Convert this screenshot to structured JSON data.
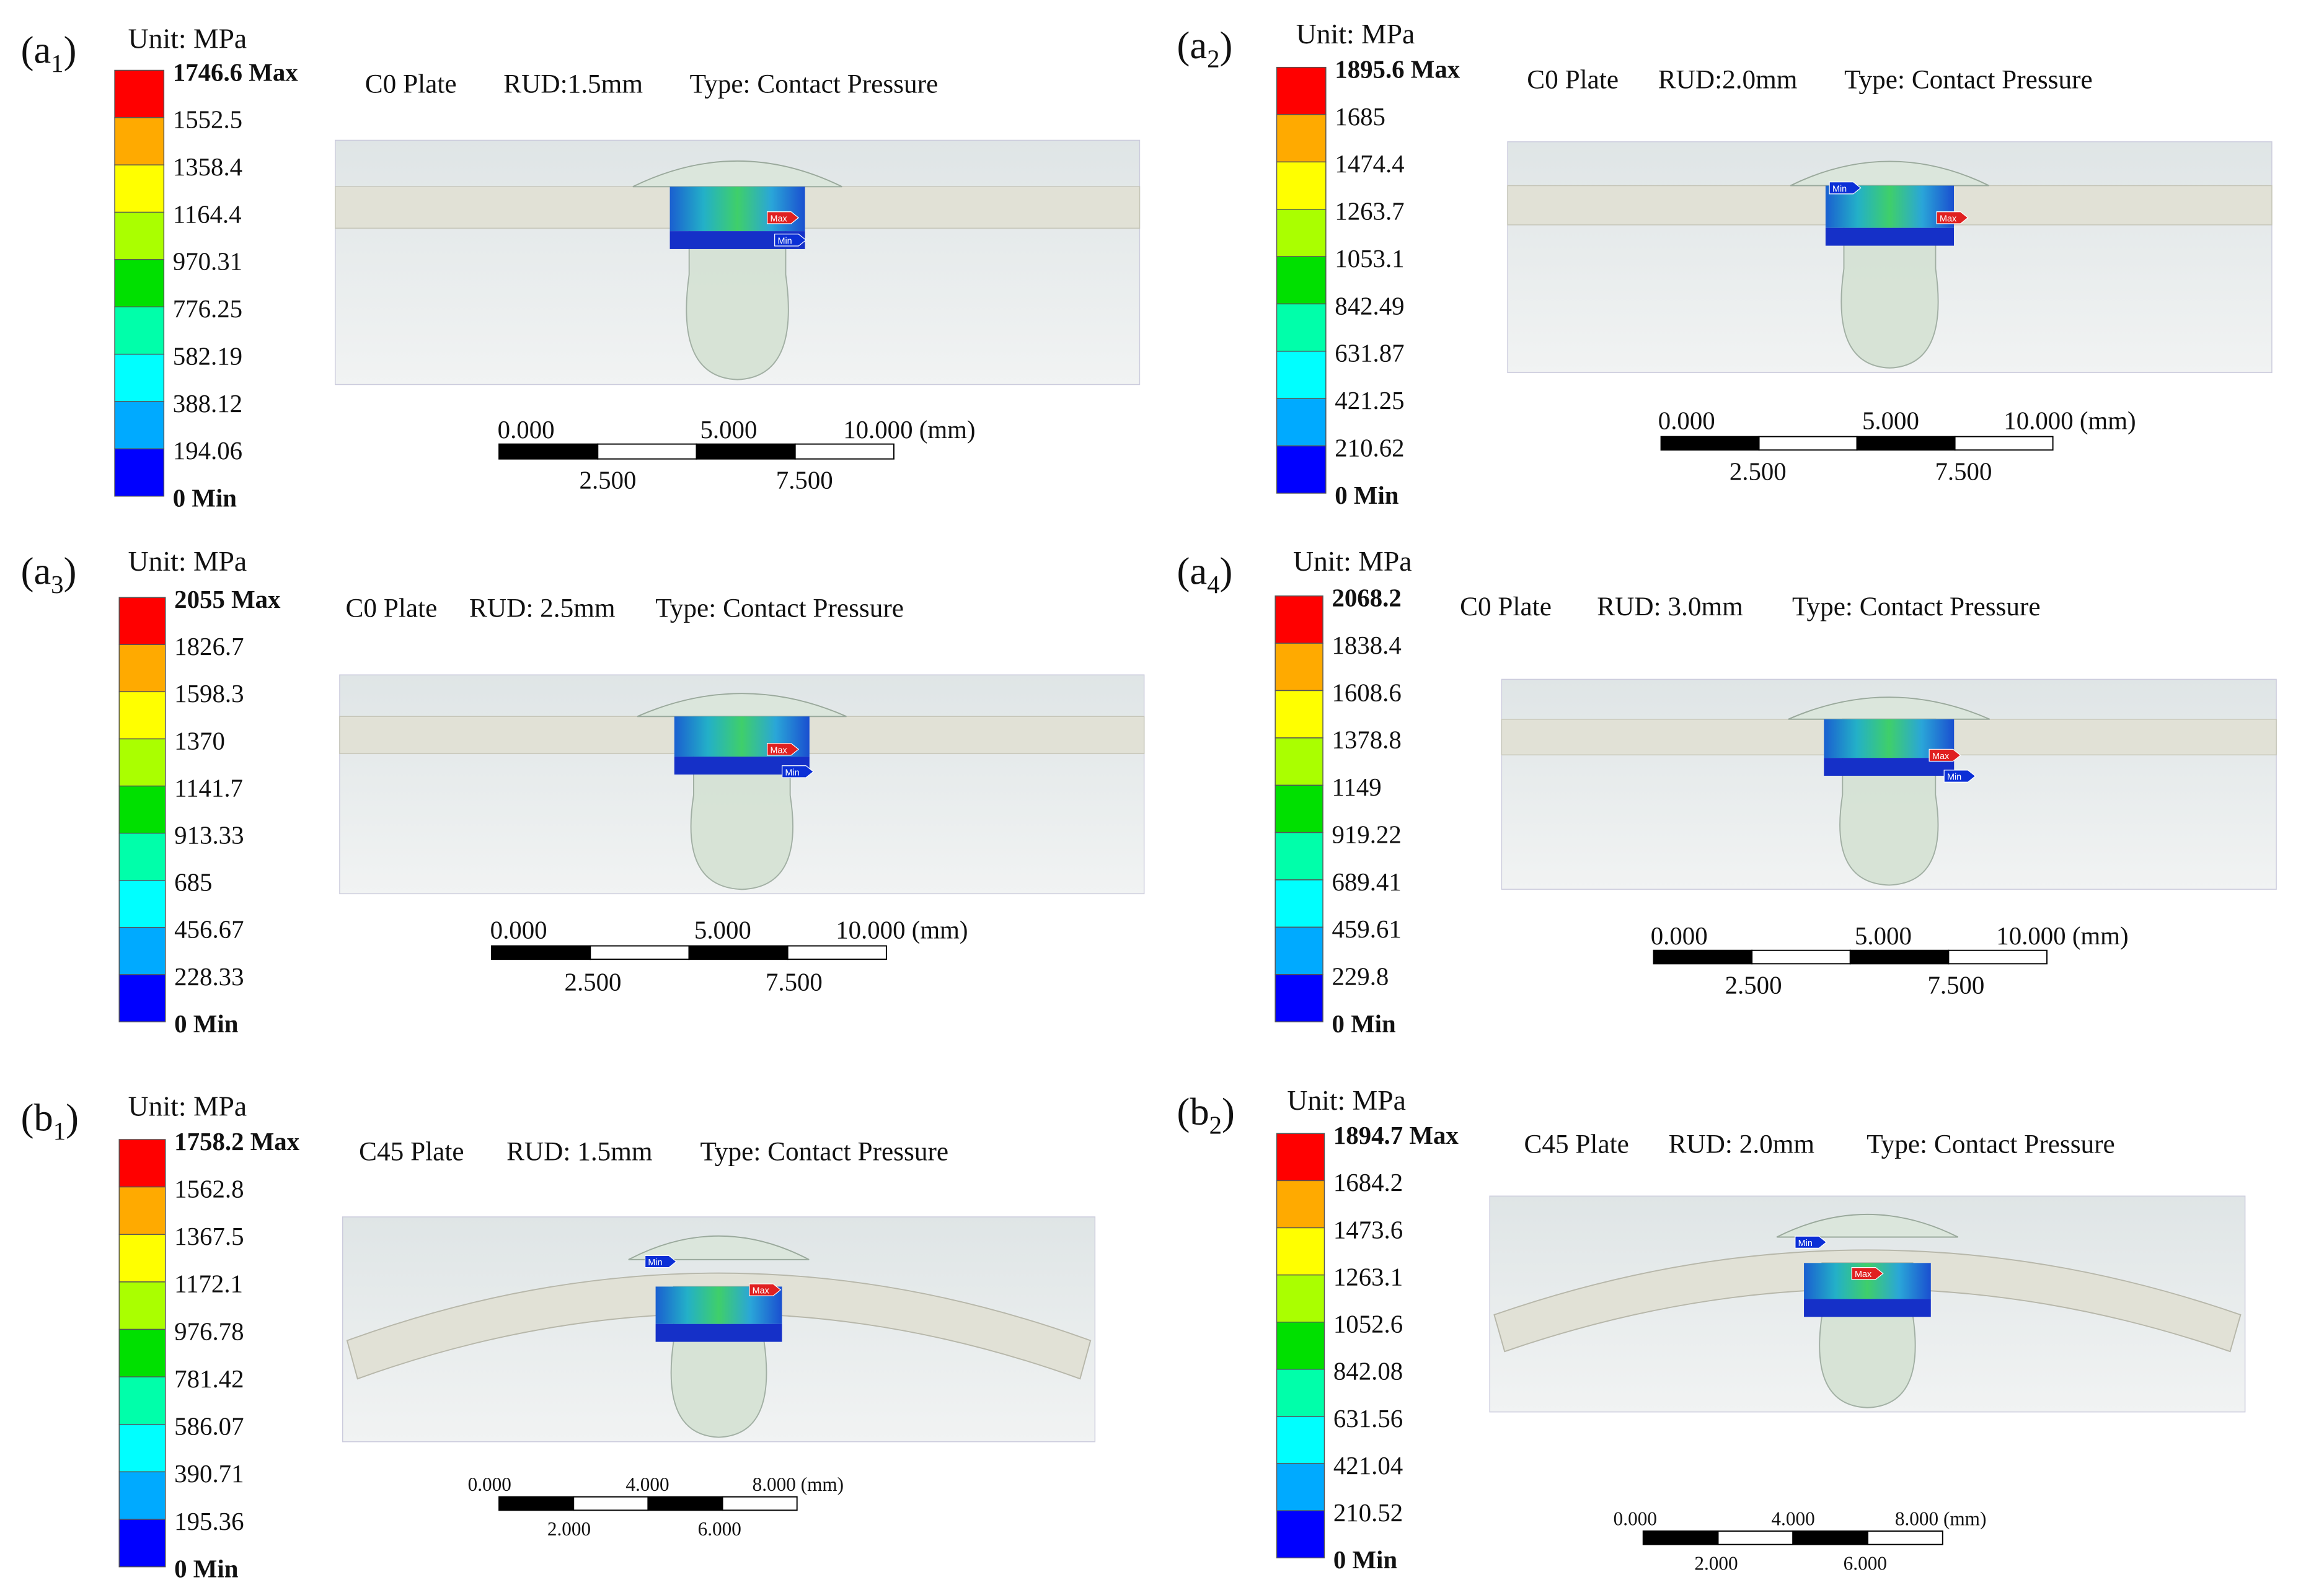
{
  "legend_colors": [
    "#ff0000",
    "#ffaa00",
    "#ffff00",
    "#aaff00",
    "#00e000",
    "#00ffaa",
    "#00ffff",
    "#00aaff",
    "#0000ff"
  ],
  "panels": [
    {
      "label": [
        "(a",
        "1",
        ")"
      ],
      "unit": "Unit: MPa",
      "legend": [
        "1746.6 Max",
        "1552.5",
        "1358.4",
        "1164.4",
        "970.31",
        "776.25",
        "582.19",
        "388.12",
        "194.06",
        "0 Min"
      ],
      "header": [
        "C0 Plate",
        "RUD:1.5mm",
        "Type: Contact Pressure"
      ],
      "scale_top": [
        "0.000",
        "5.000",
        "10.000 (mm)"
      ],
      "scale_bottom": [
        "2.500",
        "7.500"
      ],
      "markers": [
        "Max",
        "Min"
      ]
    },
    {
      "label": [
        "(a",
        "2",
        ")"
      ],
      "unit": "Unit: MPa",
      "legend": [
        "1895.6 Max",
        "1685",
        "1474.4",
        "1263.7",
        "1053.1",
        "842.49",
        "631.87",
        "421.25",
        "210.62",
        "0 Min"
      ],
      "header": [
        "C0 Plate",
        "RUD:2.0mm",
        "Type: Contact Pressure"
      ],
      "scale_top": [
        "0.000",
        "5.000",
        "10.000 (mm)"
      ],
      "scale_bottom": [
        "2.500",
        "7.500"
      ],
      "markers": [
        "Max",
        "Min"
      ]
    },
    {
      "label": [
        "(a",
        "3",
        ")"
      ],
      "unit": "Unit: MPa",
      "legend": [
        "2055 Max",
        "1826.7",
        "1598.3",
        "1370",
        "1141.7",
        "913.33",
        "685",
        "456.67",
        "228.33",
        "0 Min"
      ],
      "header": [
        "C0 Plate",
        "RUD: 2.5mm",
        "Type: Contact Pressure"
      ],
      "scale_top": [
        "0.000",
        "5.000",
        "10.000 (mm)"
      ],
      "scale_bottom": [
        "2.500",
        "7.500"
      ],
      "markers": [
        "Max",
        "Min"
      ]
    },
    {
      "label": [
        "(a",
        "4",
        ")"
      ],
      "unit": "Unit: MPa",
      "legend": [
        "2068.2",
        "1838.4",
        "1608.6",
        "1378.8",
        "1149",
        "919.22",
        "689.41",
        "459.61",
        "229.8",
        "0 Min"
      ],
      "header": [
        "C0 Plate",
        "RUD: 3.0mm",
        "Type: Contact Pressure"
      ],
      "scale_top": [
        "0.000",
        "5.000",
        "10.000 (mm)"
      ],
      "scale_bottom": [
        "2.500",
        "7.500"
      ],
      "markers": [
        "Max",
        "Min"
      ]
    },
    {
      "label": [
        "(b",
        "1",
        ")"
      ],
      "unit": "Unit: MPa",
      "legend": [
        "1758.2 Max",
        "1562.8",
        "1367.5",
        "1172.1",
        "976.78",
        "781.42",
        "586.07",
        "390.71",
        "195.36",
        "0 Min"
      ],
      "header": [
        "C45 Plate",
        "RUD: 1.5mm",
        "Type: Contact Pressure"
      ],
      "scale_top": [
        "0.000",
        "4.000",
        "8.000 (mm)"
      ],
      "scale_bottom": [
        "2.000",
        "6.000"
      ],
      "markers": [
        "Max",
        "Min"
      ]
    },
    {
      "label": [
        "(b",
        "2",
        ")"
      ],
      "unit": "Unit: MPa",
      "legend": [
        "1894.7 Max",
        "1684.2",
        "1473.6",
        "1263.1",
        "1052.6",
        "842.08",
        "631.56",
        "421.04",
        "210.52",
        "0 Min"
      ],
      "header": [
        "C45 Plate",
        "RUD: 2.0mm",
        "Type: Contact Pressure"
      ],
      "scale_top": [
        "0.000",
        "4.000",
        "8.000 (mm)"
      ],
      "scale_bottom": [
        "2.000",
        "6.000"
      ],
      "markers": [
        "Max",
        "Min"
      ]
    }
  ]
}
